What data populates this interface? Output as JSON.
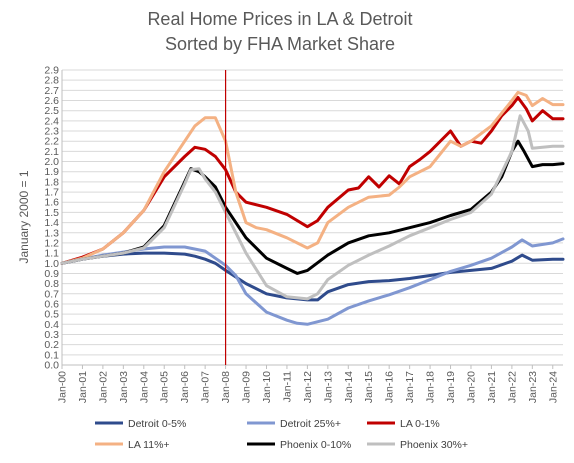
{
  "chart_data": {
    "type": "line",
    "title": "Real Home Prices in LA & Detroit",
    "subtitle": "Sorted by FHA Market Share",
    "ylabel": "January 2000 = 1",
    "xlabel": "",
    "ylim": [
      0,
      2.9
    ],
    "y_ticks": [
      "0.0",
      "0.1",
      "0.2",
      "0.3",
      "0.4",
      "0.5",
      "0.6",
      "0.7",
      "0.8",
      "0.9",
      "1.0",
      "1.1",
      "1.2",
      "1.3",
      "1.4",
      "1.5",
      "1.6",
      "1.7",
      "1.8",
      "1.9",
      "2.0",
      "2.1",
      "2.2",
      "2.3",
      "2.4",
      "2.5",
      "2.6",
      "2.7",
      "2.8",
      "2.9"
    ],
    "x_ticks": [
      "Jan-00",
      "Jan-01",
      "Jan-02",
      "Jan-03",
      "Jan-04",
      "Jan-05",
      "Jan-06",
      "Jan-07",
      "Jan-08",
      "Jan-09",
      "Jan-10",
      "Jan-11",
      "Jan-12",
      "Jan-13",
      "Jan-14",
      "Jan-15",
      "Jan-16",
      "Jan-17",
      "Jan-18",
      "Jan-19",
      "Jan-20",
      "Jan-21",
      "Jan-22",
      "Jan-23",
      "Jan-24"
    ],
    "xlim": [
      2000,
      2024.5
    ],
    "grid": "horizontal",
    "legend_position": "bottom",
    "vline": {
      "x": 2008.0,
      "color": "#C00000"
    },
    "series": [
      {
        "name": "Detroit 0-5%",
        "color": "#2F4B8C",
        "x": [
          2000,
          2001,
          2002,
          2003,
          2004,
          2005,
          2006,
          2006.5,
          2007,
          2007.5,
          2008,
          2009,
          2010,
          2011,
          2012,
          2012.5,
          2013,
          2014,
          2015,
          2016,
          2017,
          2018,
          2019,
          2020,
          2021,
          2022,
          2022.5,
          2023,
          2024,
          2024.5
        ],
        "y": [
          1.0,
          1.04,
          1.07,
          1.09,
          1.1,
          1.1,
          1.09,
          1.07,
          1.04,
          1.0,
          0.93,
          0.8,
          0.7,
          0.66,
          0.64,
          0.64,
          0.72,
          0.79,
          0.82,
          0.83,
          0.85,
          0.88,
          0.91,
          0.93,
          0.95,
          1.02,
          1.08,
          1.03,
          1.04,
          1.04
        ]
      },
      {
        "name": "Detroit 25%+",
        "color": "#8097D1",
        "x": [
          2000,
          2001,
          2002,
          2003,
          2004,
          2005,
          2006,
          2007,
          2008,
          2008.5,
          2009,
          2010,
          2011,
          2011.5,
          2012,
          2013,
          2014,
          2015,
          2016,
          2017,
          2018,
          2019,
          2020,
          2021,
          2022,
          2022.5,
          2023,
          2024,
          2024.5
        ],
        "y": [
          1.0,
          1.04,
          1.08,
          1.11,
          1.14,
          1.16,
          1.16,
          1.12,
          0.98,
          0.88,
          0.7,
          0.52,
          0.44,
          0.41,
          0.4,
          0.45,
          0.56,
          0.63,
          0.69,
          0.76,
          0.84,
          0.92,
          0.98,
          1.05,
          1.16,
          1.23,
          1.17,
          1.2,
          1.24
        ]
      },
      {
        "name": "LA 0-1%",
        "color": "#C00000",
        "x": [
          2000,
          2001,
          2002,
          2003,
          2004,
          2005,
          2006,
          2006.5,
          2007,
          2007.5,
          2008,
          2008.5,
          2009,
          2010,
          2011,
          2012,
          2012.5,
          2013,
          2014,
          2014.5,
          2015,
          2015.5,
          2016,
          2016.5,
          2017,
          2017.5,
          2018,
          2019,
          2019.5,
          2020,
          2020.5,
          2021,
          2021.5,
          2022,
          2022.3,
          2022.7,
          2023,
          2023.5,
          2024,
          2024.5
        ],
        "y": [
          1.0,
          1.06,
          1.14,
          1.3,
          1.52,
          1.85,
          2.05,
          2.14,
          2.12,
          2.05,
          1.92,
          1.7,
          1.6,
          1.55,
          1.48,
          1.36,
          1.42,
          1.55,
          1.72,
          1.74,
          1.85,
          1.75,
          1.86,
          1.78,
          1.95,
          2.02,
          2.1,
          2.3,
          2.15,
          2.2,
          2.18,
          2.3,
          2.45,
          2.55,
          2.63,
          2.52,
          2.4,
          2.5,
          2.42,
          2.42
        ]
      },
      {
        "name": "LA 11%+",
        "color": "#F4B183",
        "x": [
          2000,
          2001,
          2002,
          2003,
          2004,
          2005,
          2006,
          2006.5,
          2007,
          2007.5,
          2008,
          2008.5,
          2009,
          2009.5,
          2010,
          2011,
          2012,
          2012.5,
          2013,
          2014,
          2015,
          2016,
          2016.5,
          2017,
          2018,
          2019,
          2019.5,
          2020,
          2021,
          2022,
          2022.3,
          2022.7,
          2023,
          2023.5,
          2024,
          2024.5
        ],
        "y": [
          1.0,
          1.05,
          1.14,
          1.3,
          1.52,
          1.9,
          2.2,
          2.35,
          2.43,
          2.43,
          2.2,
          1.7,
          1.4,
          1.35,
          1.33,
          1.25,
          1.15,
          1.2,
          1.4,
          1.55,
          1.65,
          1.67,
          1.75,
          1.85,
          1.95,
          2.2,
          2.15,
          2.2,
          2.35,
          2.6,
          2.68,
          2.65,
          2.55,
          2.62,
          2.56,
          2.56
        ]
      },
      {
        "name": "Phoenix 0-10%",
        "color": "#000000",
        "x": [
          2000,
          2001,
          2002,
          2003,
          2004,
          2005,
          2006,
          2006.3,
          2006.7,
          2007,
          2007.5,
          2008,
          2009,
          2010,
          2011,
          2011.5,
          2012,
          2013,
          2014,
          2015,
          2016,
          2017,
          2018,
          2019,
          2020,
          2021,
          2021.5,
          2022,
          2022.3,
          2022.6,
          2023,
          2023.5,
          2024,
          2024.5
        ],
        "y": [
          1.0,
          1.04,
          1.07,
          1.1,
          1.16,
          1.37,
          1.8,
          1.93,
          1.9,
          1.85,
          1.75,
          1.55,
          1.25,
          1.05,
          0.95,
          0.9,
          0.93,
          1.08,
          1.2,
          1.27,
          1.3,
          1.35,
          1.4,
          1.47,
          1.53,
          1.7,
          1.85,
          2.1,
          2.2,
          2.1,
          1.95,
          1.97,
          1.97,
          1.98
        ]
      },
      {
        "name": "Phoenix 30%+",
        "color": "#BFBFBF",
        "x": [
          2000,
          2001,
          2002,
          2003,
          2004,
          2005,
          2006,
          2006.3,
          2006.7,
          2007,
          2007.5,
          2008,
          2009,
          2010,
          2011,
          2012,
          2012.5,
          2013,
          2014,
          2015,
          2016,
          2017,
          2018,
          2019,
          2020,
          2021,
          2022,
          2022.4,
          2022.8,
          2023,
          2024,
          2024.5
        ],
        "y": [
          1.0,
          1.04,
          1.07,
          1.1,
          1.15,
          1.35,
          1.78,
          1.92,
          1.93,
          1.83,
          1.7,
          1.5,
          1.1,
          0.78,
          0.67,
          0.65,
          0.7,
          0.84,
          0.98,
          1.08,
          1.17,
          1.27,
          1.35,
          1.43,
          1.5,
          1.68,
          2.1,
          2.45,
          2.3,
          2.13,
          2.15,
          2.15
        ]
      }
    ]
  }
}
